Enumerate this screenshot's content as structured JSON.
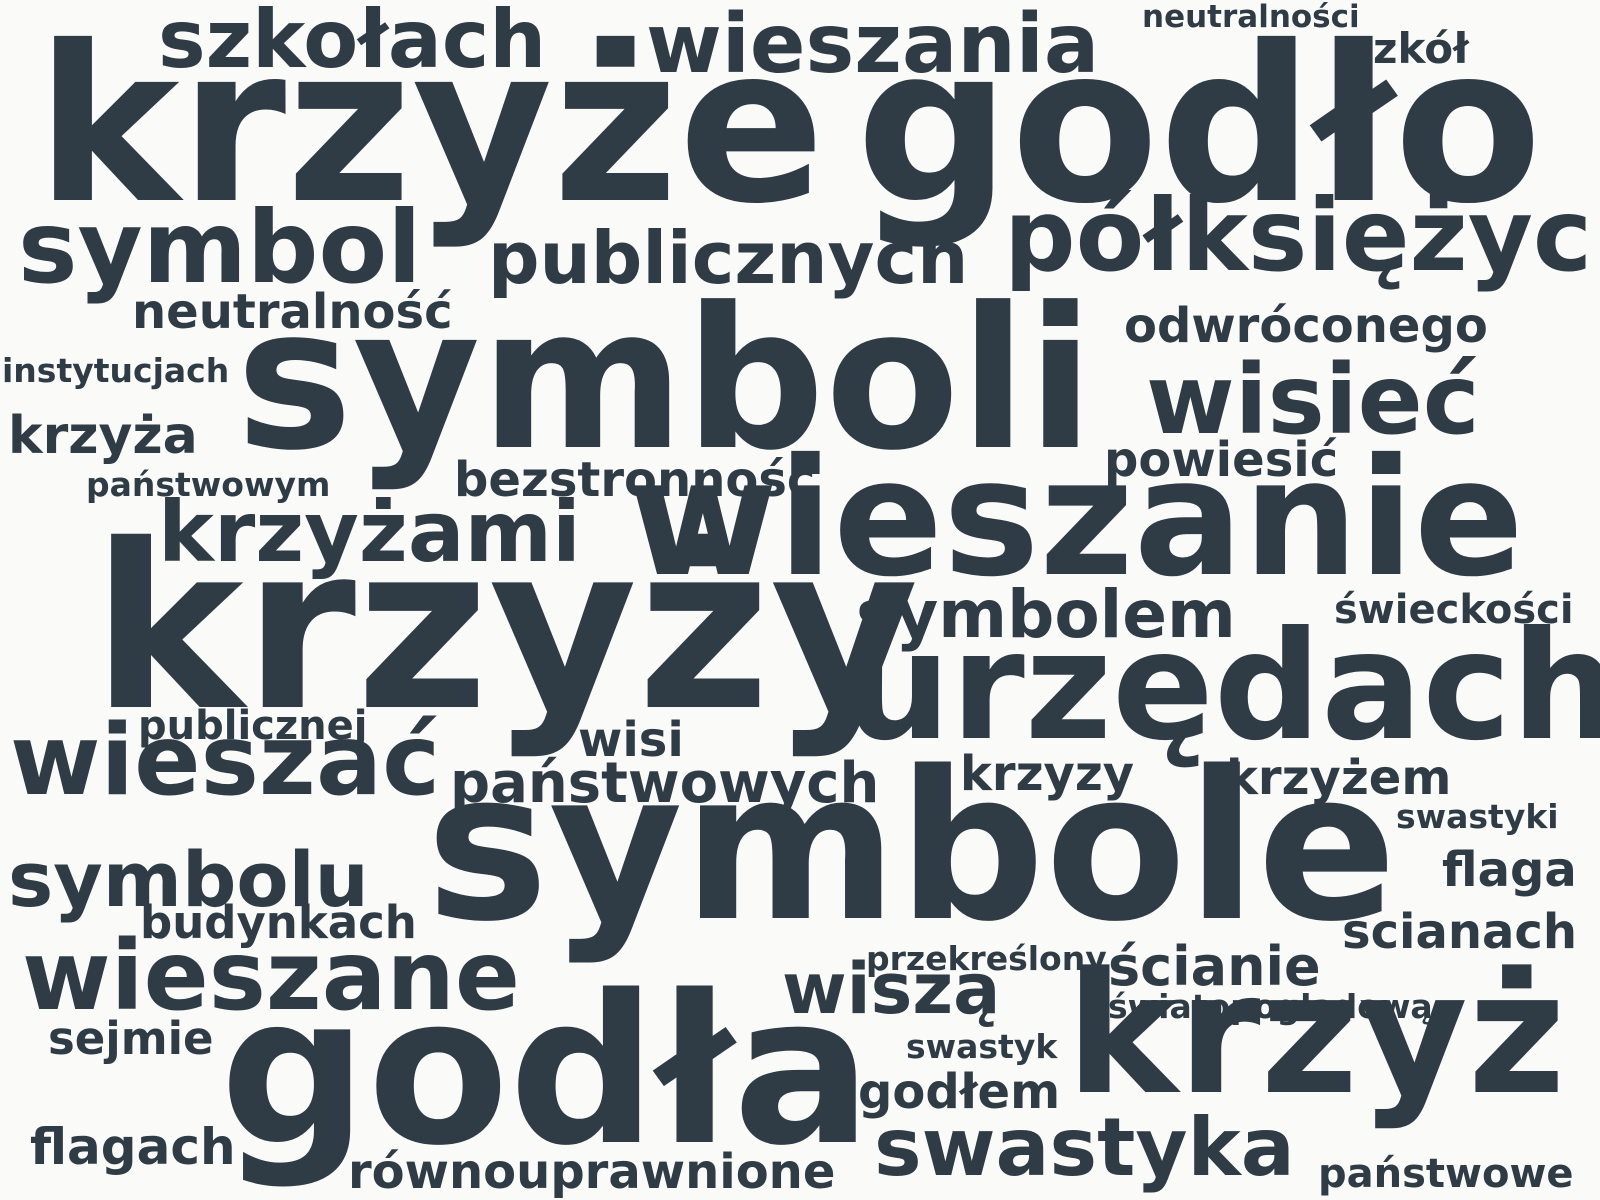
{
  "word_color": "#2f3c46",
  "background_color": "#fafaf8",
  "words": [
    {
      "id": "krzyze",
      "text": "krzyże"
    },
    {
      "id": "godlo",
      "text": "godło"
    },
    {
      "id": "szkolach",
      "text": "szkołach"
    },
    {
      "id": "wieszania",
      "text": "wieszania"
    },
    {
      "id": "neutralnosci",
      "text": "neutralności"
    },
    {
      "id": "szkol",
      "text": "szkół"
    },
    {
      "id": "symbol",
      "text": "symbol"
    },
    {
      "id": "publicznych",
      "text": "publicznych"
    },
    {
      "id": "polksiezyc",
      "text": "półksiężyc"
    },
    {
      "id": "neutralnosc",
      "text": "neutralność"
    },
    {
      "id": "symboli",
      "text": "symboli"
    },
    {
      "id": "odwroconego",
      "text": "odwróconego"
    },
    {
      "id": "instytucjach",
      "text": "instytucjach"
    },
    {
      "id": "wisiec",
      "text": "wisieć"
    },
    {
      "id": "krzyza",
      "text": "krzyża"
    },
    {
      "id": "powiesic",
      "text": "powiesić"
    },
    {
      "id": "panstwowym",
      "text": "państwowym"
    },
    {
      "id": "bezstronnosc",
      "text": "bezstronność"
    },
    {
      "id": "krzyzami",
      "text": "krzyżami"
    },
    {
      "id": "wieszanie",
      "text": "wieszanie"
    },
    {
      "id": "krzyzy",
      "text": "krzyży"
    },
    {
      "id": "symbolem",
      "text": "symbolem"
    },
    {
      "id": "swieckosci",
      "text": "świeckości"
    },
    {
      "id": "urzedach",
      "text": "urzędach"
    },
    {
      "id": "publicznej",
      "text": "publicznej"
    },
    {
      "id": "wisi",
      "text": "wisi"
    },
    {
      "id": "wieszac",
      "text": "wieszać"
    },
    {
      "id": "panstwowych",
      "text": "państwowych"
    },
    {
      "id": "krzyzy2",
      "text": "krzyzy"
    },
    {
      "id": "krzyzem",
      "text": "krzyżem"
    },
    {
      "id": "swastyki",
      "text": "swastyki"
    },
    {
      "id": "symbole",
      "text": "symbole"
    },
    {
      "id": "symbolu",
      "text": "symbolu"
    },
    {
      "id": "flaga",
      "text": "flaga"
    },
    {
      "id": "budynkach",
      "text": "budynkach"
    },
    {
      "id": "scianach",
      "text": "ścianach"
    },
    {
      "id": "przekreslony",
      "text": "przekreślony"
    },
    {
      "id": "wieszane",
      "text": "wieszane"
    },
    {
      "id": "scianie",
      "text": "ścianie"
    },
    {
      "id": "wisza",
      "text": "wiszą"
    },
    {
      "id": "swiatopogladowa",
      "text": "światopoglądową"
    },
    {
      "id": "sejmie",
      "text": "sejmie"
    },
    {
      "id": "swastyk",
      "text": "swastyk"
    },
    {
      "id": "godla",
      "text": "godła"
    },
    {
      "id": "krzyz",
      "text": "krzyż"
    },
    {
      "id": "godlem",
      "text": "godłem"
    },
    {
      "id": "flagach",
      "text": "flagach"
    },
    {
      "id": "swastyka",
      "text": "swastyka"
    },
    {
      "id": "rownouprawnione",
      "text": "równouprawnione"
    },
    {
      "id": "panstwowe",
      "text": "państwowe"
    }
  ]
}
